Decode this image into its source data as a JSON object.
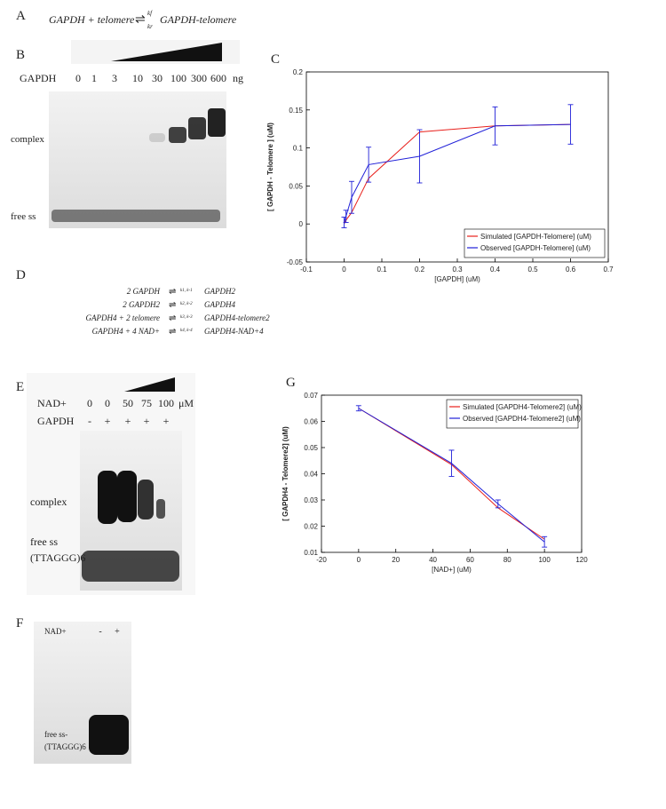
{
  "panel_a": {
    "label": "A",
    "left": "GAPDH + telomere",
    "k_forward": "kf",
    "k_reverse": "kr",
    "right": "GAPDH-telomere"
  },
  "panel_b": {
    "label": "B",
    "row_label": "GAPDH",
    "lanes": [
      "0",
      "1",
      "3",
      "10",
      "30",
      "100",
      "300",
      "600"
    ],
    "unit": "ng",
    "complex": "complex",
    "free": "free ss"
  },
  "panel_d": {
    "label": "D",
    "equations": [
      {
        "left": "2 GAPDH",
        "k": "k1, k-1",
        "right": "GAPDH2"
      },
      {
        "left": "2 GAPDH2",
        "k": "k2, k-2",
        "right": "GAPDH4"
      },
      {
        "left": "GAPDH4 + 2 telomere",
        "k": "k3, k-3",
        "right": "GAPDH4-telomere2"
      },
      {
        "left": "GAPDH4 + 4 NAD+",
        "k": "k4, k-4",
        "right": "GAPDH4-NAD+4"
      }
    ]
  },
  "panel_e": {
    "label": "E",
    "row1_label": "NAD+",
    "row1": [
      "0",
      "0",
      "50",
      "75",
      "100"
    ],
    "unit": "μM",
    "row2_label": "GAPDH",
    "row2": [
      "-",
      "+",
      "+",
      "+",
      "+"
    ],
    "complex": "complex",
    "free": "free ss",
    "seq": "(TTAGGG)6"
  },
  "panel_f": {
    "label": "F",
    "row_label": "NAD+",
    "row": [
      "-",
      "+"
    ],
    "free": "free ss-",
    "seq": "(TTAGGG)6"
  },
  "chart_data": [
    {
      "type": "line",
      "panel": "C",
      "xlabel": "[GAPDH] (uM)",
      "ylabel": "[ GAPDH - Telomere ] (uM)",
      "x": [
        0,
        0.005,
        0.02,
        0.065,
        0.2,
        0.4,
        0.6
      ],
      "xlim": [
        -0.1,
        0.7
      ],
      "xticks": [
        -0.1,
        0,
        0.1,
        0.2,
        0.3,
        0.4,
        0.5,
        0.6,
        0.7
      ],
      "ylim": [
        -0.05,
        0.2
      ],
      "yticks": [
        -0.05,
        0,
        0.05,
        0.1,
        0.15,
        0.2
      ],
      "legend": "lower right",
      "series": [
        {
          "name": "Simulated [GAPDH-Telomere] (uM)",
          "color": "#e8201c",
          "values": [
            0,
            0.005,
            0.015,
            0.06,
            0.121,
            0.129,
            0.131
          ]
        },
        {
          "name": "Observed [GAPDH-Telomere] (uM)",
          "color": "#2020d8",
          "values": [
            0.002,
            0.01,
            0.035,
            0.078,
            0.089,
            0.129,
            0.131
          ],
          "errors": [
            0.007,
            0.008,
            0.021,
            0.023,
            0.035,
            0.025,
            0.026
          ]
        }
      ]
    },
    {
      "type": "line",
      "panel": "G",
      "xlabel": "[NAD+] (uM)",
      "ylabel": "[ GAPDH4 - Telomere2] (uM)",
      "x": [
        0,
        50,
        75,
        100
      ],
      "xlim": [
        -20,
        120
      ],
      "xticks": [
        -20,
        0,
        20,
        40,
        60,
        80,
        100,
        120
      ],
      "ylim": [
        0.01,
        0.07
      ],
      "yticks": [
        0.01,
        0.02,
        0.03,
        0.04,
        0.05,
        0.06,
        0.07
      ],
      "legend": "upper right",
      "series": [
        {
          "name": "Simulated [GAPDH4-Telomere2] (uM)",
          "color": "#e8201c",
          "values": [
            0.065,
            0.0435,
            0.027,
            0.015
          ]
        },
        {
          "name": "Observed [GAPDH4-Telomere2] (uM)",
          "color": "#2020d8",
          "values": [
            0.065,
            0.044,
            0.0285,
            0.014
          ],
          "errors": [
            0.001,
            0.005,
            0.0015,
            0.002
          ]
        }
      ]
    }
  ]
}
